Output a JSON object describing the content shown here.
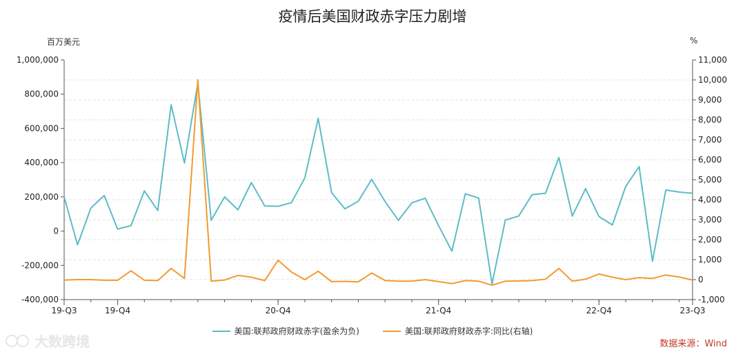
{
  "chart_data": {
    "type": "line",
    "title": "疫情后美国财政赤字压力剧增",
    "y_left_unit": "百万美元",
    "y_right_unit": "%",
    "x_tick_labels": [
      {
        "index": 0,
        "label": "19-Q3"
      },
      {
        "index": 4,
        "label": "19-Q4"
      },
      {
        "index": 16,
        "label": "20-Q4"
      },
      {
        "index": 28,
        "label": "21-Q4"
      },
      {
        "index": 40,
        "label": "22-Q4"
      },
      {
        "index": 47,
        "label": "23-Q3"
      }
    ],
    "ylim_left": [
      -400000,
      1000000
    ],
    "yticks_left": [
      "1,000,000",
      "800,000",
      "600,000",
      "400,000",
      "200,000",
      "0",
      "-200,000",
      "-400,000"
    ],
    "ylim_right": [
      -1000,
      11000
    ],
    "yticks_right": [
      "11,000",
      "10,000",
      "9,000",
      "8,000",
      "7,000",
      "6,000",
      "5,000",
      "4,000",
      "3,000",
      "2,000",
      "1,000",
      "0",
      "-1,000"
    ],
    "grid": true,
    "legend_position": "bottom",
    "series": [
      {
        "name": "美国:联邦政府财政赤字(盈余为负)",
        "axis": "left",
        "color": "#5bbcc6",
        "values": [
          200000,
          -80000,
          135000,
          208000,
          12000,
          32000,
          235000,
          120000,
          738000,
          398000,
          864000,
          63000,
          200000,
          124000,
          284000,
          147000,
          145000,
          166000,
          311000,
          659000,
          225000,
          130000,
          175000,
          302000,
          173000,
          63000,
          165000,
          192000,
          33000,
          -117000,
          218000,
          193000,
          -308000,
          65000,
          88000,
          213000,
          221000,
          430000,
          88000,
          248000,
          85000,
          36000,
          261000,
          377000,
          -176000,
          240000,
          228000,
          221000
        ]
      },
      {
        "name": "美国:联邦政府财政赤字:同比(右轴)",
        "axis": "right",
        "color": "#f39a2d",
        "values": [
          -20,
          0,
          0,
          -30,
          -30,
          440,
          -30,
          -50,
          560,
          60,
          10000,
          -80,
          -20,
          210,
          120,
          -50,
          970,
          380,
          0,
          420,
          -100,
          -90,
          -110,
          330,
          -40,
          -80,
          -80,
          0,
          -100,
          -200,
          -50,
          -80,
          -280,
          -80,
          -70,
          -50,
          20,
          560,
          -80,
          20,
          280,
          120,
          0,
          100,
          60,
          230,
          130,
          -20
        ]
      }
    ]
  },
  "source_text": "数据来源：Wind",
  "watermark_text": "大数跨境"
}
